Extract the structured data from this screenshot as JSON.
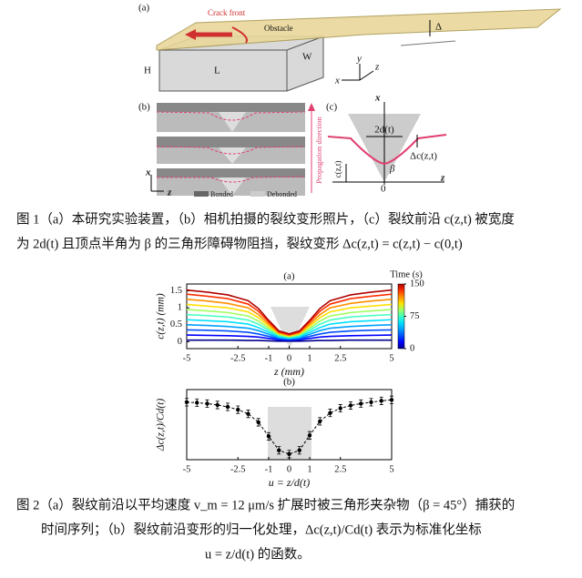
{
  "figure1": {
    "panel_a": "(a)",
    "crack_front": "Crack front",
    "obstacle": "Obstacle",
    "delta": "Δ",
    "H": "H",
    "L": "L",
    "W": "W",
    "axis_y": "y",
    "axis_z": "z",
    "axis_x": "x",
    "panel_b": "(b)",
    "b_axis_x": "x",
    "b_axis_z": "z",
    "bonded": "Bonded",
    "debonded": "Debonded",
    "propagation": "Propagation direction",
    "panel_c": "(c)",
    "c_axis_x": "x",
    "c_width": "2d(t)",
    "c_delta": "Δc(z,t)",
    "c_c": "c(z,t)",
    "c_beta": "β",
    "c_zero": "0",
    "c_axis_z": "z"
  },
  "caption1": [
    "图 1（a）本研究实验装置，（b）相机拍摄的裂纹变形照片，（c）裂纹前沿 c(z,t) 被宽度",
    "为 2d(t) 且顶点半角为 β 的三角形障碍物阻挡，裂纹变形 Δc(z,t) = c(z,t) − c(0,t)"
  ],
  "chart_data": [
    {
      "type": "line",
      "label": "(a)",
      "x_label": "z (mm)",
      "y_label": "c(z,t) (mm)",
      "x": [
        -5,
        -4,
        -3,
        -2,
        -1.5,
        -1,
        -0.5,
        0,
        0.5,
        1,
        1.5,
        2,
        3,
        4,
        5
      ],
      "series": [
        {
          "color": "#00008b",
          "values": [
            0.05,
            0.05,
            0.05,
            0.04,
            0.04,
            0.03,
            0.02,
            0.02,
            0.02,
            0.03,
            0.04,
            0.04,
            0.05,
            0.05,
            0.05
          ]
        },
        {
          "color": "#0000ff",
          "values": [
            0.2,
            0.19,
            0.18,
            0.16,
            0.14,
            0.1,
            0.06,
            0.05,
            0.06,
            0.1,
            0.14,
            0.16,
            0.18,
            0.19,
            0.2
          ]
        },
        {
          "color": "#0050ff",
          "values": [
            0.35,
            0.34,
            0.32,
            0.28,
            0.23,
            0.16,
            0.09,
            0.07,
            0.09,
            0.16,
            0.23,
            0.28,
            0.32,
            0.34,
            0.35
          ]
        },
        {
          "color": "#00a0ff",
          "values": [
            0.5,
            0.48,
            0.45,
            0.4,
            0.33,
            0.22,
            0.12,
            0.09,
            0.12,
            0.22,
            0.33,
            0.4,
            0.45,
            0.48,
            0.5
          ]
        },
        {
          "color": "#00e0ff",
          "values": [
            0.65,
            0.62,
            0.59,
            0.52,
            0.42,
            0.28,
            0.15,
            0.11,
            0.15,
            0.28,
            0.42,
            0.52,
            0.59,
            0.62,
            0.65
          ]
        },
        {
          "color": "#40ffbf",
          "values": [
            0.8,
            0.77,
            0.73,
            0.64,
            0.52,
            0.34,
            0.18,
            0.13,
            0.18,
            0.34,
            0.52,
            0.64,
            0.73,
            0.77,
            0.8
          ]
        },
        {
          "color": "#a0ff60",
          "values": [
            0.95,
            0.91,
            0.86,
            0.76,
            0.61,
            0.4,
            0.21,
            0.15,
            0.21,
            0.4,
            0.61,
            0.76,
            0.86,
            0.91,
            0.95
          ]
        },
        {
          "color": "#ffe000",
          "values": [
            1.1,
            1.05,
            1,
            0.88,
            0.71,
            0.46,
            0.24,
            0.17,
            0.24,
            0.46,
            0.71,
            0.88,
            1,
            1.05,
            1.1
          ]
        },
        {
          "color": "#ff9000",
          "values": [
            1.25,
            1.2,
            1.13,
            1,
            0.8,
            0.52,
            0.26,
            0.19,
            0.26,
            0.52,
            0.8,
            1,
            1.13,
            1.2,
            1.25
          ]
        },
        {
          "color": "#ff3000",
          "values": [
            1.4,
            1.34,
            1.27,
            1.11,
            0.9,
            0.58,
            0.29,
            0.21,
            0.29,
            0.58,
            0.9,
            1.11,
            1.27,
            1.34,
            1.4
          ]
        },
        {
          "color": "#b00000",
          "values": [
            1.52,
            1.46,
            1.38,
            1.21,
            0.98,
            0.63,
            0.32,
            0.23,
            0.32,
            0.63,
            0.98,
            1.21,
            1.38,
            1.46,
            1.52
          ]
        }
      ],
      "xlim": [
        -5,
        5
      ],
      "xticks": [
        -5,
        -2.5,
        -1,
        0,
        1,
        2.5,
        5
      ],
      "ylim": [
        -0.2,
        1.7
      ],
      "yticks": [
        0,
        0.5,
        1,
        1.5
      ],
      "colorbar": {
        "label": "Time (s)",
        "lim": [
          0,
          150
        ],
        "ticks": [
          0,
          75,
          150
        ]
      }
    },
    {
      "type": "errorbar",
      "label": "(b)",
      "x_label": "u = z/d(t)",
      "y_label": "Δc(z,t)/Cd(t)",
      "color": "#000000",
      "x": [
        -5,
        -4.5,
        -4,
        -3.5,
        -3,
        -2.5,
        -2,
        -1.5,
        -1,
        -0.5,
        0,
        0.5,
        1,
        1.5,
        2,
        2.5,
        3,
        3.5,
        4,
        4.5,
        5
      ],
      "values": [
        1.13,
        1.12,
        1.1,
        1.07,
        1.03,
        0.97,
        0.88,
        0.7,
        0.4,
        0.1,
        0.02,
        0.1,
        0.42,
        0.72,
        0.9,
        1,
        1.06,
        1.1,
        1.13,
        1.16,
        1.18
      ],
      "errors": [
        0.08,
        0.08,
        0.08,
        0.08,
        0.08,
        0.08,
        0.08,
        0.08,
        0.08,
        0.08,
        0.08,
        0.08,
        0.08,
        0.08,
        0.08,
        0.08,
        0.08,
        0.08,
        0.08,
        0.08,
        0.08
      ],
      "xlim": [
        -5,
        5
      ],
      "xticks": [
        -5,
        -2.5,
        -1,
        0,
        1,
        2.5,
        5
      ],
      "ylim": [
        -0.1,
        1.4
      ]
    }
  ],
  "caption2": [
    "图 2（a）裂纹前沿以平均速度 v_m = 12 μm/s 扩展时被三角形夹杂物（β = 45°）捕获的",
    "时间序列；（b）裂纹前沿变形的归一化处理，Δc(z,t)/Cd(t) 表示为标准化坐标",
    "u = z/d(t) 的函数。"
  ]
}
